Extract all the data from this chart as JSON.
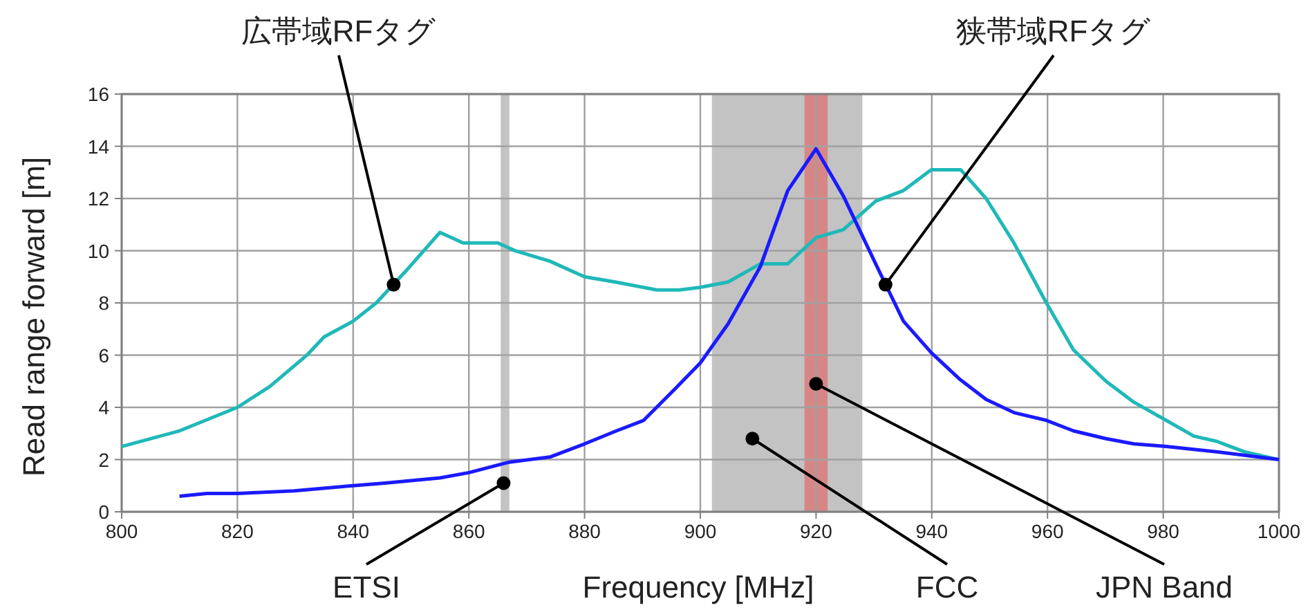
{
  "chart_data": {
    "type": "line",
    "xlabel": "Frequency [MHz]",
    "ylabel": "Read range forward  [m]",
    "xlim": [
      800,
      1000
    ],
    "xticks": [
      800,
      820,
      840,
      860,
      880,
      900,
      920,
      940,
      960,
      980,
      1000
    ],
    "ylim": [
      0,
      16
    ],
    "yticks": [
      0,
      2,
      4,
      6,
      8,
      10,
      12,
      14,
      16
    ],
    "grid": true,
    "marker": "none",
    "line_style": "solid",
    "series": [
      {
        "color": "#20b8b8",
        "x": [
          800,
          810,
          820,
          825.6,
          832,
          835,
          840,
          844,
          849,
          855,
          859,
          865,
          868,
          874,
          880,
          885.3,
          892.5,
          896.4,
          900,
          904.8,
          910.4,
          915.1,
          920,
          924.7,
          930.3,
          935.1,
          939.9,
          945,
          949.4,
          954.2,
          959.8,
          964.5,
          970.1,
          974.9,
          980.5,
          985.3,
          989.2,
          994,
          1000
        ],
        "values": [
          2.5,
          3.1,
          4.0,
          4.8,
          6.0,
          6.7,
          7.3,
          8.0,
          9.2,
          10.7,
          10.3,
          10.3,
          10.0,
          9.6,
          9.0,
          8.8,
          8.5,
          8.5,
          8.6,
          8.8,
          9.5,
          9.5,
          10.5,
          10.8,
          11.9,
          12.3,
          13.1,
          13.1,
          12.0,
          10.3,
          8.0,
          6.2,
          5.0,
          4.2,
          3.5,
          2.9,
          2.7,
          2.3,
          2.0
        ]
      },
      {
        "color": "#1a1aff",
        "x": [
          810,
          814.7,
          820,
          829.8,
          840,
          845.5,
          855,
          860,
          867,
          874,
          880,
          885.5,
          890.2,
          895.6,
          900,
          904.8,
          910.4,
          915.1,
          920,
          924.7,
          930.3,
          935.1,
          939.9,
          944.7,
          949.4,
          954.2,
          959.8,
          964.5,
          970.1,
          974.9,
          980.5,
          989.2,
          1000
        ],
        "values": [
          0.6,
          0.7,
          0.7,
          0.8,
          1.0,
          1.1,
          1.3,
          1.5,
          1.9,
          2.1,
          2.6,
          3.1,
          3.5,
          4.7,
          5.7,
          7.2,
          9.4,
          12.3,
          13.9,
          12.1,
          9.5,
          7.3,
          6.1,
          5.1,
          4.3,
          3.8,
          3.5,
          3.1,
          2.8,
          2.6,
          2.5,
          2.3,
          2.0
        ]
      }
    ],
    "bands": [
      {
        "axis": "x",
        "from": 865.5,
        "to": 867,
        "color": "#bdbdbd"
      },
      {
        "axis": "x",
        "from": 902,
        "to": 928,
        "color": "#bdbdbd"
      },
      {
        "axis": "x",
        "from": 918,
        "to": 922,
        "color": "#d98080"
      }
    ],
    "annotations": [
      {
        "text": "広帯域RFタグ",
        "x": 847,
        "y": 8.7
      },
      {
        "text": "狭帯域RFタグ",
        "x": 932,
        "y": 8.7
      },
      {
        "text": "ETSI",
        "x": 866,
        "y": 1.1
      },
      {
        "text": "FCC",
        "x": 909,
        "y": 2.8
      },
      {
        "text": "JPN Band",
        "x": 920,
        "y": 4.9
      }
    ]
  }
}
